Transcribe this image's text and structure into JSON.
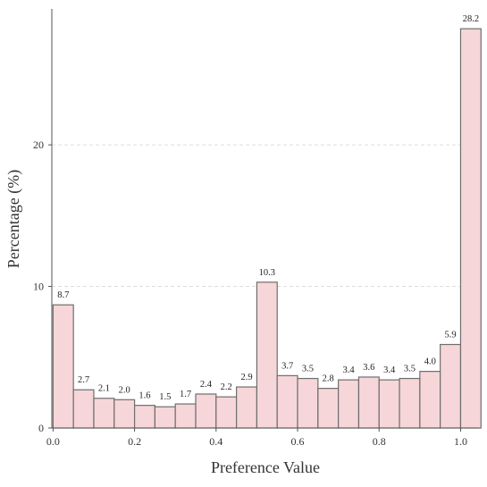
{
  "chart_data": {
    "type": "bar",
    "title": "",
    "xlabel": "Preference Value",
    "ylabel": "Percentage (%)",
    "bin_edges": [
      0.0,
      0.05,
      0.1,
      0.15,
      0.2,
      0.25,
      0.3,
      0.35,
      0.4,
      0.45,
      0.5,
      0.55,
      0.6,
      0.65,
      0.7,
      0.75,
      0.8,
      0.85,
      0.9,
      0.95,
      1.0
    ],
    "values": [
      8.7,
      2.7,
      2.1,
      2.0,
      1.6,
      1.5,
      1.7,
      2.4,
      2.2,
      2.9,
      10.3,
      3.7,
      3.5,
      2.8,
      3.4,
      3.6,
      3.4,
      3.5,
      4.0,
      5.9,
      28.2
    ],
    "value_labels": [
      "8.7",
      "2.7",
      "2.1",
      "2.0",
      "1.6",
      "1.5",
      "1.7",
      "2.4",
      "2.2",
      "2.9",
      "10.3",
      "3.7",
      "3.5",
      "2.8",
      "3.4",
      "3.6",
      "3.4",
      "3.5",
      "4.0",
      "5.9",
      "28.2"
    ],
    "bin_width": 0.05,
    "xlim": [
      -0.003,
      1.045
    ],
    "ylim": [
      0,
      29.6
    ],
    "x_ticks": [
      0.0,
      0.2,
      0.4,
      0.6,
      0.8,
      1.0
    ],
    "x_tick_labels": [
      "0.0",
      "0.2",
      "0.4",
      "0.6",
      "0.8",
      "1.0"
    ],
    "y_ticks": [
      0,
      10,
      20
    ],
    "y_tick_labels": [
      "0",
      "10",
      "20"
    ],
    "grid": "horizontal dashed",
    "bar_color": "#f6d6d8",
    "bar_edge_color": "#6e6e6e",
    "legend": "none"
  }
}
